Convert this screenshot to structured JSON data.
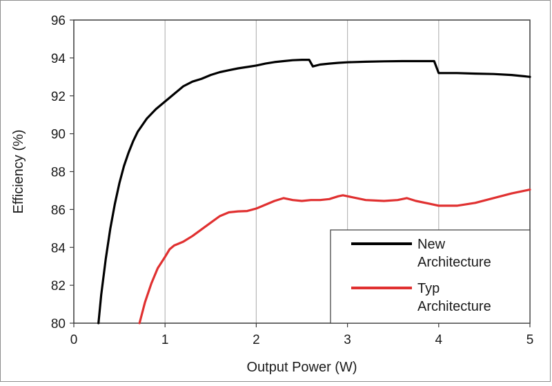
{
  "chart_data": {
    "type": "line",
    "title": "",
    "xlabel": "Output Power (W)",
    "ylabel": "Efficiency (%)",
    "xlim": [
      0,
      5
    ],
    "ylim": [
      80,
      96
    ],
    "x_ticks": [
      "0",
      "1",
      "2",
      "3",
      "4",
      "5"
    ],
    "y_ticks": [
      "80",
      "82",
      "84",
      "86",
      "88",
      "90",
      "92",
      "94",
      "96"
    ],
    "grid": "vertical",
    "legend_position": "bottom-right",
    "legend": [
      {
        "line1": "New",
        "line2": "Architecture",
        "color": "#000000"
      },
      {
        "line1": "Typ",
        "line2": "Architecture",
        "color": "#e03030"
      }
    ],
    "series": [
      {
        "color": "#000000",
        "points": [
          [
            0.27,
            80.0
          ],
          [
            0.3,
            81.5
          ],
          [
            0.35,
            83.4
          ],
          [
            0.4,
            85.0
          ],
          [
            0.45,
            86.3
          ],
          [
            0.5,
            87.4
          ],
          [
            0.55,
            88.3
          ],
          [
            0.6,
            89.0
          ],
          [
            0.65,
            89.6
          ],
          [
            0.7,
            90.1
          ],
          [
            0.8,
            90.8
          ],
          [
            0.9,
            91.3
          ],
          [
            1.0,
            91.7
          ],
          [
            1.1,
            92.1
          ],
          [
            1.2,
            92.5
          ],
          [
            1.3,
            92.75
          ],
          [
            1.4,
            92.9
          ],
          [
            1.5,
            93.1
          ],
          [
            1.6,
            93.25
          ],
          [
            1.7,
            93.35
          ],
          [
            1.8,
            93.45
          ],
          [
            1.9,
            93.52
          ],
          [
            2.0,
            93.6
          ],
          [
            2.1,
            93.7
          ],
          [
            2.2,
            93.78
          ],
          [
            2.3,
            93.83
          ],
          [
            2.4,
            93.88
          ],
          [
            2.5,
            93.9
          ],
          [
            2.58,
            93.9
          ],
          [
            2.62,
            93.55
          ],
          [
            2.7,
            93.65
          ],
          [
            2.8,
            93.7
          ],
          [
            2.9,
            93.74
          ],
          [
            3.0,
            93.77
          ],
          [
            3.2,
            93.8
          ],
          [
            3.4,
            93.82
          ],
          [
            3.6,
            93.83
          ],
          [
            3.8,
            93.83
          ],
          [
            3.95,
            93.83
          ],
          [
            4.0,
            93.2
          ],
          [
            4.2,
            93.2
          ],
          [
            4.4,
            93.17
          ],
          [
            4.6,
            93.15
          ],
          [
            4.8,
            93.1
          ],
          [
            5.0,
            93.0
          ]
        ]
      },
      {
        "color": "#e03030",
        "points": [
          [
            0.72,
            80.0
          ],
          [
            0.78,
            81.1
          ],
          [
            0.85,
            82.1
          ],
          [
            0.92,
            82.9
          ],
          [
            1.0,
            83.5
          ],
          [
            1.05,
            83.9
          ],
          [
            1.1,
            84.1
          ],
          [
            1.2,
            84.3
          ],
          [
            1.3,
            84.6
          ],
          [
            1.4,
            84.95
          ],
          [
            1.5,
            85.3
          ],
          [
            1.6,
            85.65
          ],
          [
            1.7,
            85.85
          ],
          [
            1.8,
            85.9
          ],
          [
            1.9,
            85.92
          ],
          [
            2.0,
            86.05
          ],
          [
            2.1,
            86.25
          ],
          [
            2.2,
            86.45
          ],
          [
            2.3,
            86.6
          ],
          [
            2.4,
            86.5
          ],
          [
            2.5,
            86.45
          ],
          [
            2.6,
            86.5
          ],
          [
            2.7,
            86.5
          ],
          [
            2.8,
            86.55
          ],
          [
            2.9,
            86.7
          ],
          [
            2.95,
            86.75
          ],
          [
            3.0,
            86.7
          ],
          [
            3.1,
            86.6
          ],
          [
            3.2,
            86.5
          ],
          [
            3.4,
            86.45
          ],
          [
            3.55,
            86.5
          ],
          [
            3.65,
            86.6
          ],
          [
            3.75,
            86.45
          ],
          [
            3.9,
            86.3
          ],
          [
            4.0,
            86.2
          ],
          [
            4.2,
            86.2
          ],
          [
            4.4,
            86.35
          ],
          [
            4.6,
            86.6
          ],
          [
            4.8,
            86.85
          ],
          [
            5.0,
            87.05
          ]
        ]
      }
    ]
  }
}
